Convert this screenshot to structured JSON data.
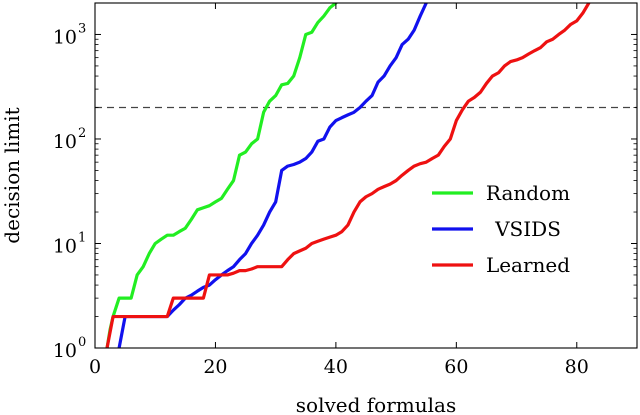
{
  "chart_data": {
    "type": "line",
    "title": "",
    "xlabel": "solved formulas",
    "ylabel": "decision limit",
    "xlim": [
      0,
      90
    ],
    "ylim": [
      1,
      2000
    ],
    "y_scale": "log",
    "grid": false,
    "legend_position": "center-right",
    "x_ticks": [
      {
        "value": 0,
        "label": "0"
      },
      {
        "value": 20,
        "label": "20"
      },
      {
        "value": 40,
        "label": "40"
      },
      {
        "value": 60,
        "label": "60"
      },
      {
        "value": 80,
        "label": "80"
      }
    ],
    "y_ticks": [
      {
        "value": 1,
        "base": "10",
        "exp": "0"
      },
      {
        "value": 10,
        "base": "10",
        "exp": "1"
      },
      {
        "value": 100,
        "base": "10",
        "exp": "2"
      },
      {
        "value": 1000,
        "base": "10",
        "exp": "3"
      }
    ],
    "reference_line": {
      "y": 200,
      "style": "dashed",
      "color": "#444444"
    },
    "series": [
      {
        "name": "Random",
        "color": "#22ee22",
        "points": [
          [
            2,
            1
          ],
          [
            2.5,
            1.5
          ],
          [
            3,
            2
          ],
          [
            4,
            3
          ],
          [
            5,
            3
          ],
          [
            6,
            3
          ],
          [
            7,
            5
          ],
          [
            8,
            6
          ],
          [
            9,
            8
          ],
          [
            10,
            10
          ],
          [
            11,
            11
          ],
          [
            12,
            12
          ],
          [
            13,
            12
          ],
          [
            14,
            13
          ],
          [
            15,
            14
          ],
          [
            16,
            17
          ],
          [
            17,
            21
          ],
          [
            18,
            22
          ],
          [
            19,
            23
          ],
          [
            20,
            25
          ],
          [
            21,
            27
          ],
          [
            22,
            33
          ],
          [
            23,
            40
          ],
          [
            24,
            70
          ],
          [
            25,
            75
          ],
          [
            26,
            90
          ],
          [
            27,
            100
          ],
          [
            28,
            180
          ],
          [
            29,
            230
          ],
          [
            30,
            260
          ],
          [
            31,
            330
          ],
          [
            32,
            340
          ],
          [
            33,
            400
          ],
          [
            34,
            600
          ],
          [
            35,
            1000
          ],
          [
            36,
            1050
          ],
          [
            37,
            1300
          ],
          [
            38,
            1500
          ],
          [
            39,
            1800
          ],
          [
            40,
            2000
          ]
        ]
      },
      {
        "name": "VSIDS",
        "color": "#1111ee",
        "points": [
          [
            4,
            1
          ],
          [
            5,
            2
          ],
          [
            6,
            2
          ],
          [
            7,
            2
          ],
          [
            8,
            2
          ],
          [
            9,
            2
          ],
          [
            10,
            2
          ],
          [
            11,
            2
          ],
          [
            12,
            2
          ],
          [
            13,
            2.3
          ],
          [
            14,
            2.6
          ],
          [
            15,
            3
          ],
          [
            16,
            3.2
          ],
          [
            17,
            3.5
          ],
          [
            18,
            3.8
          ],
          [
            19,
            4
          ],
          [
            20,
            4.5
          ],
          [
            21,
            5
          ],
          [
            22,
            5.5
          ],
          [
            23,
            6
          ],
          [
            24,
            7
          ],
          [
            25,
            8
          ],
          [
            26,
            10
          ],
          [
            27,
            12
          ],
          [
            28,
            15
          ],
          [
            29,
            20
          ],
          [
            30,
            25
          ],
          [
            31,
            50
          ],
          [
            32,
            55
          ],
          [
            33,
            57
          ],
          [
            34,
            60
          ],
          [
            35,
            65
          ],
          [
            36,
            75
          ],
          [
            37,
            95
          ],
          [
            38,
            100
          ],
          [
            39,
            130
          ],
          [
            40,
            150
          ],
          [
            41,
            160
          ],
          [
            42,
            170
          ],
          [
            43,
            180
          ],
          [
            44,
            200
          ],
          [
            45,
            230
          ],
          [
            46,
            260
          ],
          [
            47,
            350
          ],
          [
            48,
            400
          ],
          [
            49,
            500
          ],
          [
            50,
            600
          ],
          [
            51,
            800
          ],
          [
            52,
            900
          ],
          [
            53,
            1100
          ],
          [
            54,
            1500
          ],
          [
            55,
            2000
          ]
        ]
      },
      {
        "name": "Learned",
        "color": "#ee1111",
        "points": [
          [
            2,
            1
          ],
          [
            3,
            2
          ],
          [
            5,
            2
          ],
          [
            10,
            2
          ],
          [
            12,
            2
          ],
          [
            13,
            3
          ],
          [
            14,
            3
          ],
          [
            18,
            3
          ],
          [
            19,
            5
          ],
          [
            22,
            5
          ],
          [
            23,
            5.2
          ],
          [
            24,
            5.5
          ],
          [
            25,
            5.5
          ],
          [
            26,
            5.7
          ],
          [
            27,
            6
          ],
          [
            28,
            6
          ],
          [
            31,
            6
          ],
          [
            32,
            7
          ],
          [
            33,
            8
          ],
          [
            34,
            8.5
          ],
          [
            35,
            9
          ],
          [
            36,
            10
          ],
          [
            37,
            10.5
          ],
          [
            38,
            11
          ],
          [
            39,
            11.5
          ],
          [
            40,
            12
          ],
          [
            41,
            13
          ],
          [
            42,
            15
          ],
          [
            43,
            20
          ],
          [
            44,
            25
          ],
          [
            45,
            28
          ],
          [
            46,
            30
          ],
          [
            47,
            33
          ],
          [
            48,
            35
          ],
          [
            49,
            37
          ],
          [
            50,
            40
          ],
          [
            51,
            45
          ],
          [
            52,
            50
          ],
          [
            53,
            55
          ],
          [
            54,
            58
          ],
          [
            55,
            60
          ],
          [
            56,
            65
          ],
          [
            57,
            70
          ],
          [
            58,
            85
          ],
          [
            59,
            100
          ],
          [
            60,
            150
          ],
          [
            61,
            190
          ],
          [
            62,
            230
          ],
          [
            63,
            250
          ],
          [
            64,
            280
          ],
          [
            65,
            340
          ],
          [
            66,
            400
          ],
          [
            67,
            430
          ],
          [
            68,
            500
          ],
          [
            69,
            550
          ],
          [
            70,
            570
          ],
          [
            71,
            600
          ],
          [
            72,
            650
          ],
          [
            73,
            700
          ],
          [
            74,
            750
          ],
          [
            75,
            850
          ],
          [
            76,
            900
          ],
          [
            77,
            1000
          ],
          [
            78,
            1100
          ],
          [
            79,
            1250
          ],
          [
            80,
            1350
          ],
          [
            81,
            1600
          ],
          [
            82,
            2000
          ]
        ]
      }
    ]
  }
}
